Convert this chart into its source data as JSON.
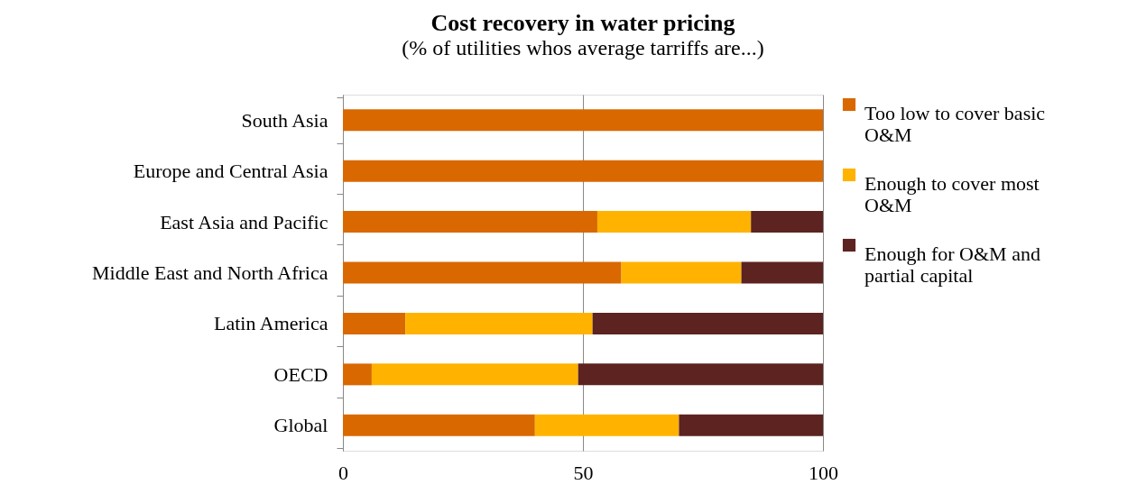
{
  "chart_data": {
    "type": "bar",
    "orientation": "horizontal",
    "stacked": true,
    "title": "Cost recovery in water pricing",
    "subtitle": "(% of utilities whos average tarriffs are...)",
    "categories": [
      "South Asia",
      "Europe and Central Asia",
      "East Asia and Pacific",
      "Middle East and North Africa",
      "Latin America",
      "OECD",
      "Global"
    ],
    "series": [
      {
        "name": "Too low to cover basic O&M",
        "color": "#d96800",
        "values": [
          100,
          100,
          53,
          58,
          13,
          6,
          40
        ]
      },
      {
        "name": "Enough to cover most O&M",
        "color": "#ffb300",
        "values": [
          0,
          0,
          32,
          25,
          39,
          43,
          30
        ]
      },
      {
        "name": "Enough for O&M and partial capital",
        "color": "#5c2320",
        "values": [
          0,
          0,
          15,
          17,
          48,
          51,
          30
        ]
      }
    ],
    "xlim": [
      0,
      100
    ],
    "xticks": [
      0,
      50,
      100
    ],
    "grid": "x",
    "legend": "right"
  }
}
